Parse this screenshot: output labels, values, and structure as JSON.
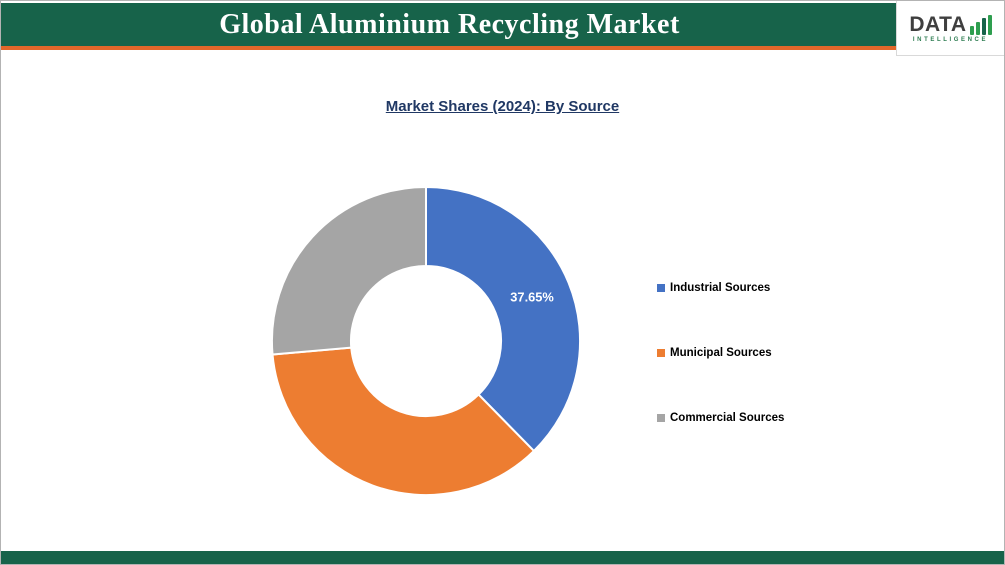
{
  "header": {
    "title": "Global Aluminium Recycling Market",
    "logo": {
      "name": "DATA",
      "subtitle": "INTELLIGENCE",
      "icon": "bar-chart-logo-icon"
    }
  },
  "chart": {
    "title": "Market Shares (2024): By Source"
  },
  "chart_data": {
    "type": "pie",
    "subtype": "donut",
    "title": "Market Shares (2024): By Source",
    "labels": [
      "Industrial Sources",
      "Municipal Sources",
      "Commercial Sources"
    ],
    "values": [
      37.65,
      35.95,
      26.4
    ],
    "colors": [
      "#4472c4",
      "#ed7d31",
      "#a5a5a5"
    ],
    "data_labels": [
      "37.65%",
      null,
      null
    ],
    "start_angle_deg": 0,
    "direction": "clockwise",
    "legend_position": "right",
    "inner_radius_ratio": 0.49,
    "note": "Only the Industrial Sources slice is labeled (37.65%); other values estimated from arc angles."
  },
  "colors": {
    "header_green": "#17634a",
    "accent_orange": "#e2672a",
    "title_navy": "#203864"
  }
}
